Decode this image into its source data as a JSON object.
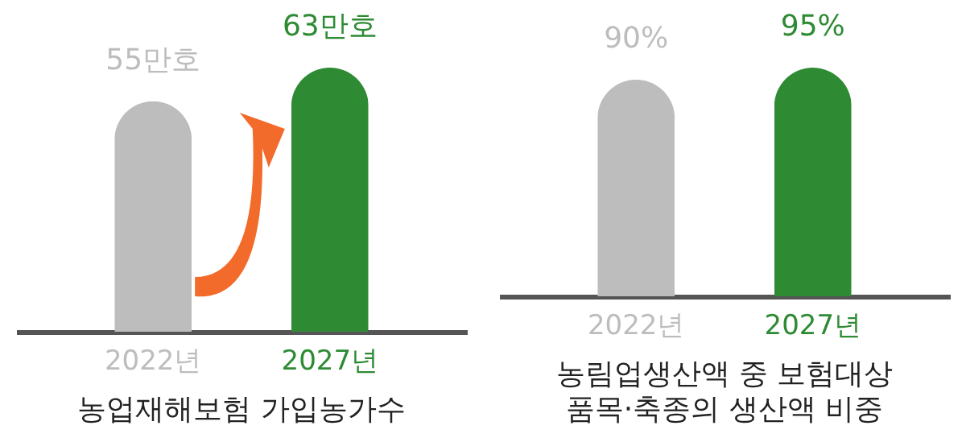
{
  "chart_data": [
    {
      "type": "bar",
      "title": "농업재해보험 가입농가수",
      "categories": [
        "2022년",
        "2027년"
      ],
      "values": [
        55,
        63
      ],
      "colors": [
        "#bdbdbd",
        "#2e8b34"
      ],
      "value_labels": [
        "55만호",
        "63만호"
      ]
    },
    {
      "type": "bar",
      "title": "농림업생산액 중 보험대상\n품목·축종의 생산액 비중",
      "categories": [
        "2022년",
        "2027년"
      ],
      "values": [
        90,
        95
      ],
      "colors": [
        "#bdbdbd",
        "#2e8b34"
      ],
      "value_labels": [
        "90%",
        "95%"
      ]
    }
  ]
}
